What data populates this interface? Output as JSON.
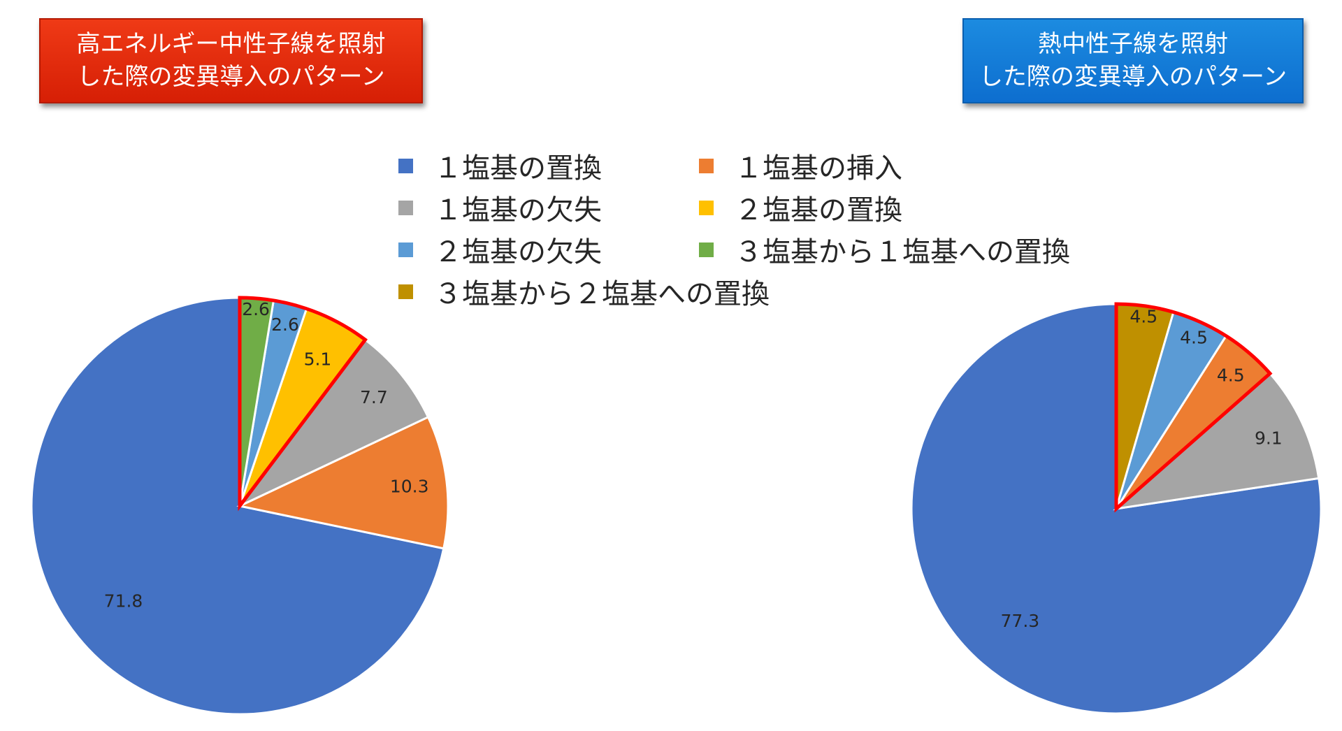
{
  "titles": {
    "left": [
      "高エネルギー中性子線を照射",
      "した際の変異導入のパターン"
    ],
    "right": [
      "熱中性子線を照射",
      "した際の変異導入のパターン"
    ]
  },
  "legend": [
    {
      "label": "１塩基の置換",
      "color": "#4472c4"
    },
    {
      "label": "１塩基の挿入",
      "color": "#ed7d31"
    },
    {
      "label": "１塩基の欠失",
      "color": "#a5a5a5"
    },
    {
      "label": "２塩基の置換",
      "color": "#ffc000"
    },
    {
      "label": "２塩基の欠失",
      "color": "#5b9bd5"
    },
    {
      "label": "３塩基から１塩基への置換",
      "color": "#70ad47"
    },
    {
      "label": "３塩基から２塩基への置換",
      "color": "#bf9000"
    }
  ],
  "highlight_color": "#ff0000",
  "chart_data": [
    {
      "type": "pie",
      "title": "高エネルギー中性子線を照射した際の変異導入のパターン",
      "slices": [
        {
          "category": "１塩基の置換",
          "value": 71.8,
          "label": "71.8"
        },
        {
          "category": "１塩基の挿入",
          "value": 10.3,
          "label": "10.3"
        },
        {
          "category": "１塩基の欠失",
          "value": 7.7,
          "label": "7.7"
        },
        {
          "category": "２塩基の置換",
          "value": 5.1,
          "label": "5.1"
        },
        {
          "category": "２塩基の欠失",
          "value": 2.6,
          "label": "2.6"
        },
        {
          "category": "３塩基から１塩基への置換",
          "value": 2.6,
          "label": "2.6"
        }
      ],
      "highlighted_categories": [
        "２塩基の置換",
        "２塩基の欠失",
        "３塩基から１塩基への置換"
      ]
    },
    {
      "type": "pie",
      "title": "熱中性子線を照射した際の変異導入のパターン",
      "slices": [
        {
          "category": "１塩基の置換",
          "value": 77.3,
          "label": "77.3"
        },
        {
          "category": "１塩基の欠失",
          "value": 9.1,
          "label": "9.1"
        },
        {
          "category": "１塩基の挿入",
          "value": 4.5,
          "label": "4.5"
        },
        {
          "category": "２塩基の欠失",
          "value": 4.5,
          "label": "4.5"
        },
        {
          "category": "３塩基から２塩基への置換",
          "value": 4.5,
          "label": "4.5"
        }
      ],
      "highlighted_categories": [
        "１塩基の挿入",
        "２塩基の欠失",
        "３塩基から２塩基への置換"
      ]
    }
  ]
}
